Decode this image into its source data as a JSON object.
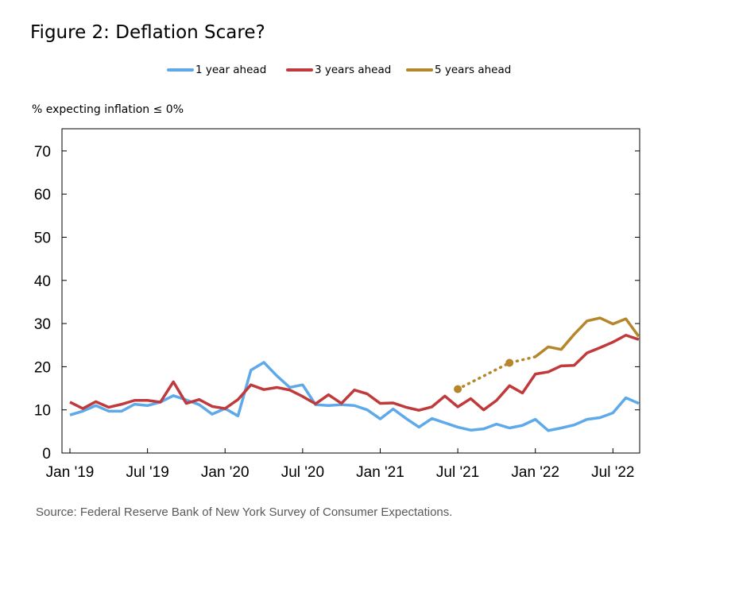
{
  "title": "Figure 2: Deflation Scare?",
  "ylabel": "% expecting inflation ≤ 0%",
  "source": "Source: Federal Reserve Bank of New York Survey of Consumer Expectations.",
  "chart_data": {
    "type": "line",
    "title": "Figure 2: Deflation Scare?",
    "xlabel": "",
    "ylabel": "% expecting inflation ≤ 0%",
    "ylim": [
      0,
      70
    ],
    "yticks": [
      "0",
      "10",
      "20",
      "30",
      "40",
      "50",
      "60",
      "70"
    ],
    "x": [
      "2019-01",
      "2019-02",
      "2019-03",
      "2019-04",
      "2019-05",
      "2019-06",
      "2019-07",
      "2019-08",
      "2019-09",
      "2019-10",
      "2019-11",
      "2019-12",
      "2020-01",
      "2020-02",
      "2020-03",
      "2020-04",
      "2020-05",
      "2020-06",
      "2020-07",
      "2020-08",
      "2020-09",
      "2020-10",
      "2020-11",
      "2020-12",
      "2021-01",
      "2021-02",
      "2021-03",
      "2021-04",
      "2021-05",
      "2021-06",
      "2021-07",
      "2021-08",
      "2021-09",
      "2021-10",
      "2021-11",
      "2021-12",
      "2022-01",
      "2022-02",
      "2022-03",
      "2022-04",
      "2022-05",
      "2022-06",
      "2022-07",
      "2022-08",
      "2022-09"
    ],
    "xticks": [
      "Jan '19",
      "Jul '19",
      "Jan '20",
      "Jul '20",
      "Jan '21",
      "Jul '21",
      "Jan '22",
      "Jul '22"
    ],
    "grid": false,
    "legend_position": "top",
    "series": [
      {
        "name": "1 year ahead",
        "color": "#5DA9E9",
        "values": [
          8.8,
          9.7,
          11.0,
          9.7,
          9.7,
          11.3,
          11.0,
          11.8,
          13.3,
          12.3,
          11.2,
          9.0,
          10.3,
          8.6,
          19.2,
          21.0,
          17.9,
          15.2,
          15.8,
          11.2,
          11.0,
          11.2,
          11.0,
          10.0,
          7.9,
          10.2,
          8.0,
          6.0,
          8.0,
          7.0,
          6.0,
          5.3,
          5.6,
          6.7,
          5.8,
          6.4,
          7.8,
          5.2,
          5.8,
          6.5,
          7.8,
          8.2,
          9.3,
          12.8,
          11.5
        ]
      },
      {
        "name": "3 years ahead",
        "color": "#C0393B",
        "values": [
          11.8,
          10.3,
          11.9,
          10.6,
          11.3,
          12.2,
          12.2,
          11.8,
          16.5,
          11.5,
          12.4,
          10.8,
          10.3,
          12.4,
          15.8,
          14.7,
          15.2,
          14.6,
          13.1,
          11.4,
          13.5,
          11.5,
          14.6,
          13.7,
          11.5,
          11.6,
          10.6,
          9.9,
          10.7,
          13.2,
          10.7,
          12.6,
          10.0,
          12.2,
          15.6,
          13.9,
          18.3,
          18.8,
          20.2,
          20.3,
          23.2,
          24.4,
          25.7,
          27.3,
          26.3
        ]
      },
      {
        "name": "5 years ahead",
        "color": "#B5862A",
        "values": [
          null,
          null,
          null,
          null,
          null,
          null,
          null,
          null,
          null,
          null,
          null,
          null,
          null,
          null,
          null,
          null,
          null,
          null,
          null,
          null,
          null,
          null,
          null,
          null,
          null,
          null,
          null,
          null,
          null,
          null,
          14.8,
          null,
          null,
          null,
          20.9,
          null,
          22.3,
          24.6,
          24.0,
          27.5,
          30.6,
          31.3,
          29.9,
          31.1,
          27.0
        ],
        "note_style": "dotted with markers for 2021-07 to 2021-12"
      }
    ]
  }
}
